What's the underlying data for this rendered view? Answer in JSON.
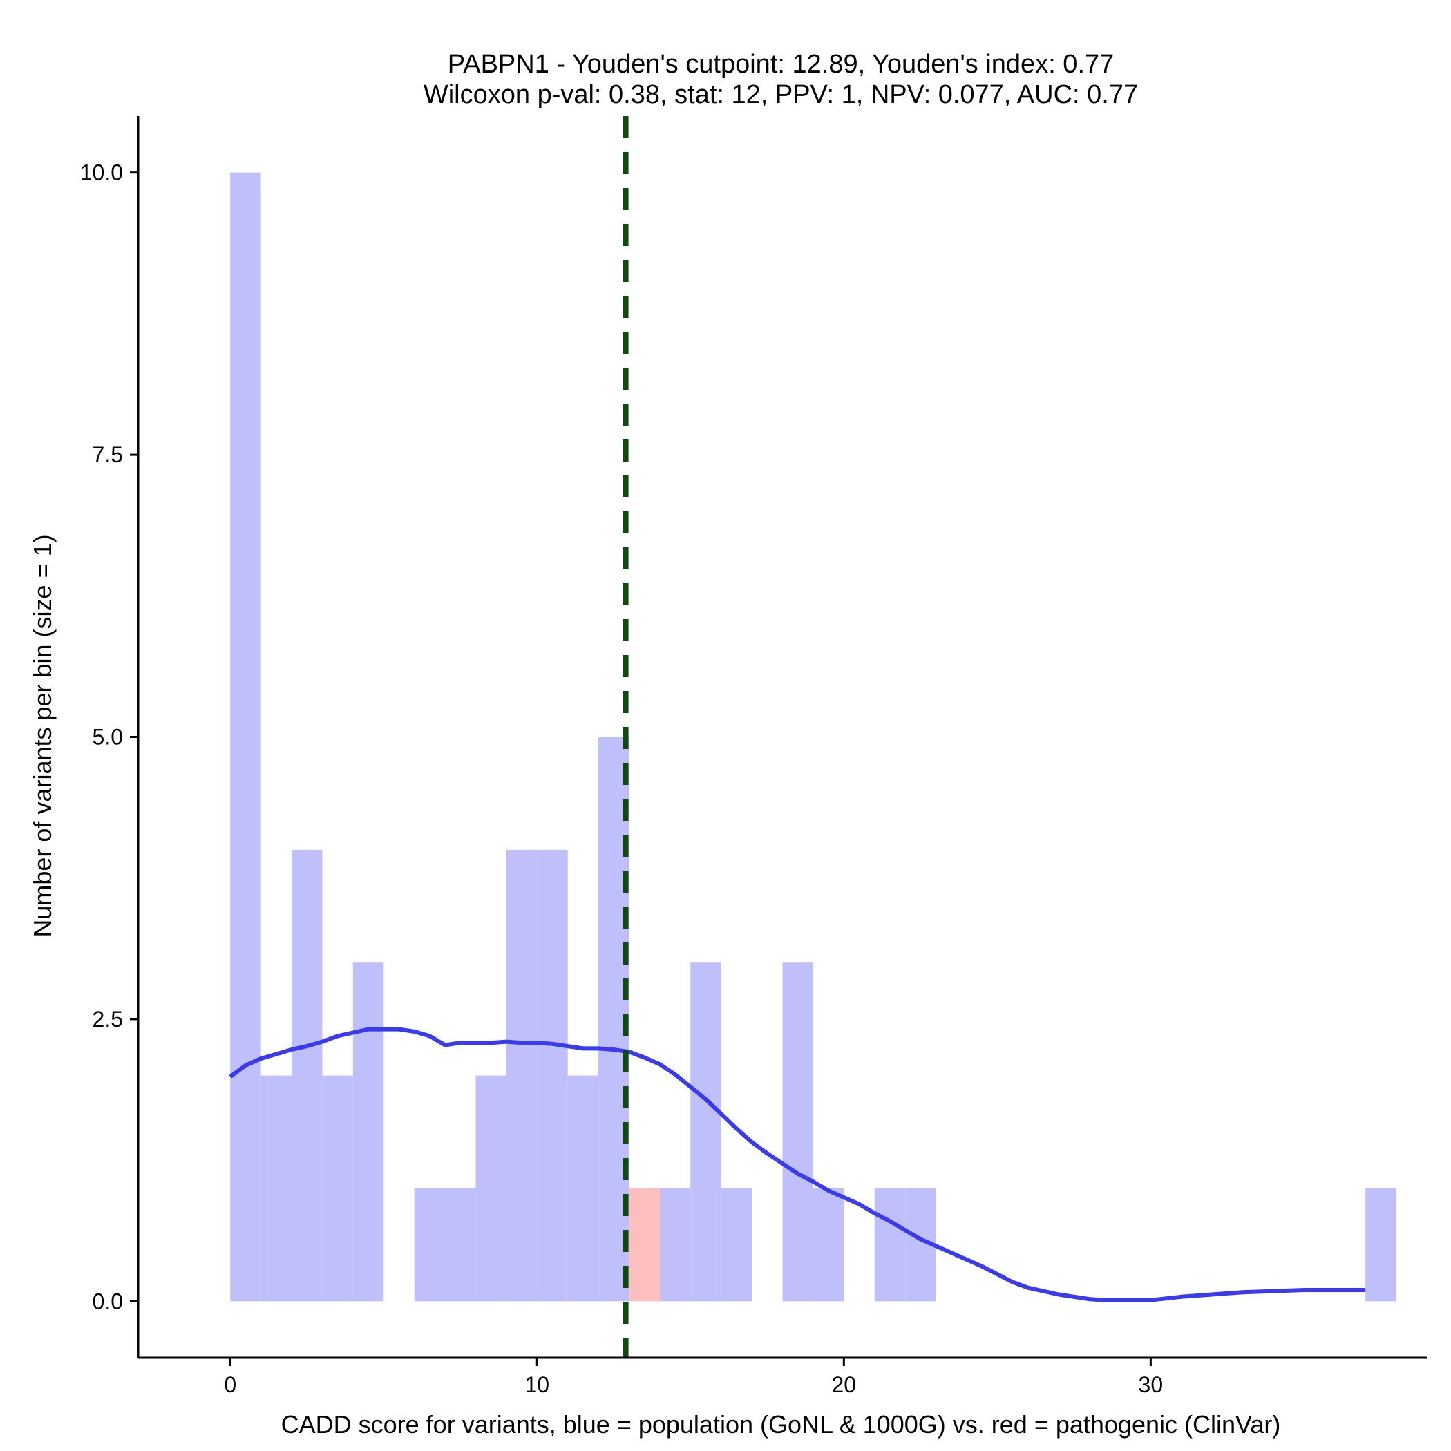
{
  "chart_data": {
    "type": "bar",
    "title": "PABPN1 - Youden's cutpoint: 12.89, Youden's index: 0.77",
    "subtitle": "Wilcoxon p-val: 0.38, stat: 12, PPV: 1, NPV: 0.077, AUC: 0.77",
    "xlabel": "CADD score for variants, blue = population (GoNL & 1000G) vs. red = pathogenic (ClinVar)",
    "ylabel": "Number of variants per bin (size = 1)",
    "xlim": [
      -3,
      39
    ],
    "ylim": [
      -0.5,
      10.5
    ],
    "x_ticks": [
      0,
      10,
      20,
      30
    ],
    "x_tick_labels": [
      "0",
      "10",
      "20",
      "30"
    ],
    "y_ticks": [
      0,
      2.5,
      5,
      7.5,
      10
    ],
    "y_tick_labels": [
      "0.0",
      "2.5",
      "5.0",
      "7.5",
      "10.0"
    ],
    "bin_width": 1,
    "cutpoint": 12.89,
    "colors": {
      "population": "#bfbffb",
      "pathogenic": "#fbbfbf",
      "density": "#3a3aee",
      "cutpoint": "#0f4a0f"
    },
    "series": [
      {
        "name": "population",
        "bins": [
          {
            "start": 0,
            "count": 10
          },
          {
            "start": 1,
            "count": 2
          },
          {
            "start": 2,
            "count": 4
          },
          {
            "start": 3,
            "count": 2
          },
          {
            "start": 4,
            "count": 3
          },
          {
            "start": 6,
            "count": 1
          },
          {
            "start": 7,
            "count": 1
          },
          {
            "start": 8,
            "count": 2
          },
          {
            "start": 9,
            "count": 4
          },
          {
            "start": 10,
            "count": 4
          },
          {
            "start": 11,
            "count": 2
          },
          {
            "start": 12,
            "count": 5
          },
          {
            "start": 14,
            "count": 1
          },
          {
            "start": 15,
            "count": 3
          },
          {
            "start": 16,
            "count": 1
          },
          {
            "start": 18,
            "count": 3
          },
          {
            "start": 19,
            "count": 1
          },
          {
            "start": 21,
            "count": 1
          },
          {
            "start": 22,
            "count": 1
          },
          {
            "start": 37,
            "count": 1
          }
        ]
      },
      {
        "name": "pathogenic",
        "bins": [
          {
            "start": 13,
            "count": 1
          }
        ]
      }
    ],
    "density_curve": {
      "x": [
        0,
        0.5,
        1,
        1.5,
        2,
        2.5,
        3,
        3.5,
        4,
        4.5,
        5,
        5.5,
        6,
        6.5,
        7,
        7.5,
        8,
        8.5,
        9,
        9.5,
        10,
        10.5,
        11,
        11.5,
        12,
        12.5,
        13,
        13.5,
        14,
        14.5,
        15,
        15.5,
        16,
        16.5,
        17,
        17.5,
        18,
        18.5,
        19,
        19.5,
        20,
        20.5,
        21,
        21.5,
        22,
        22.5,
        23,
        23.5,
        24,
        24.5,
        25,
        25.5,
        26,
        26.5,
        27,
        28,
        28.5,
        29,
        30,
        31,
        32,
        33,
        34,
        35,
        36,
        37
      ],
      "y": [
        1.99,
        2.09,
        2.15,
        2.19,
        2.23,
        2.26,
        2.3,
        2.35,
        2.38,
        2.41,
        2.41,
        2.41,
        2.39,
        2.35,
        2.27,
        2.29,
        2.29,
        2.29,
        2.3,
        2.29,
        2.29,
        2.28,
        2.26,
        2.24,
        2.24,
        2.23,
        2.21,
        2.16,
        2.1,
        2.01,
        1.9,
        1.79,
        1.66,
        1.53,
        1.41,
        1.31,
        1.22,
        1.13,
        1.06,
        0.98,
        0.92,
        0.86,
        0.78,
        0.71,
        0.63,
        0.55,
        0.49,
        0.43,
        0.37,
        0.31,
        0.24,
        0.17,
        0.12,
        0.09,
        0.06,
        0.02,
        0.01,
        0.01,
        0.01,
        0.04,
        0.06,
        0.08,
        0.09,
        0.1,
        0.1,
        0.1
      ]
    }
  }
}
